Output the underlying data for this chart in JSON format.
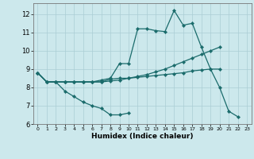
{
  "xlabel": "Humidex (Indice chaleur)",
  "bg_color": "#cce8ec",
  "grid_color": "#aacdd4",
  "line_color": "#1a6b6b",
  "xlim": [
    -0.5,
    23.5
  ],
  "ylim": [
    6.0,
    12.6
  ],
  "yticks": [
    6,
    7,
    8,
    9,
    10,
    11,
    12
  ],
  "xticks": [
    0,
    1,
    2,
    3,
    4,
    5,
    6,
    7,
    8,
    9,
    10,
    11,
    12,
    13,
    14,
    15,
    16,
    17,
    18,
    19,
    20,
    21,
    22,
    23
  ],
  "line1_x": [
    0,
    1,
    2,
    3,
    4,
    5,
    6,
    7,
    8,
    9,
    10
  ],
  "line1_y": [
    8.8,
    8.3,
    8.3,
    7.8,
    7.5,
    7.2,
    7.0,
    6.85,
    6.5,
    6.5,
    6.6
  ],
  "line2_x": [
    0,
    1,
    2,
    3,
    4,
    5,
    6,
    7,
    8,
    9,
    10,
    11,
    12,
    13,
    14,
    15,
    16,
    17,
    18,
    19,
    20,
    21,
    22
  ],
  "line2_y": [
    8.8,
    8.3,
    8.3,
    8.3,
    8.3,
    8.3,
    8.3,
    8.4,
    8.5,
    9.3,
    9.3,
    11.2,
    11.2,
    11.1,
    11.05,
    12.2,
    11.4,
    11.5,
    10.2,
    9.0,
    8.0,
    6.7,
    6.4
  ],
  "line3_x": [
    0,
    1,
    2,
    3,
    4,
    5,
    6,
    7,
    8,
    9,
    10,
    11,
    12,
    13,
    14,
    15,
    16,
    17,
    18,
    19,
    20
  ],
  "line3_y": [
    8.8,
    8.3,
    8.3,
    8.3,
    8.3,
    8.3,
    8.3,
    8.3,
    8.45,
    8.5,
    8.5,
    8.55,
    8.6,
    8.65,
    8.7,
    8.75,
    8.8,
    8.9,
    8.95,
    9.0,
    9.0
  ],
  "line4_x": [
    0,
    1,
    2,
    3,
    4,
    5,
    6,
    7,
    8,
    9,
    10,
    11,
    12,
    13,
    14,
    15,
    16,
    17,
    18,
    19,
    20
  ],
  "line4_y": [
    8.8,
    8.3,
    8.3,
    8.3,
    8.3,
    8.3,
    8.3,
    8.3,
    8.35,
    8.4,
    8.5,
    8.6,
    8.7,
    8.85,
    9.0,
    9.2,
    9.4,
    9.6,
    9.8,
    10.0,
    10.2
  ]
}
